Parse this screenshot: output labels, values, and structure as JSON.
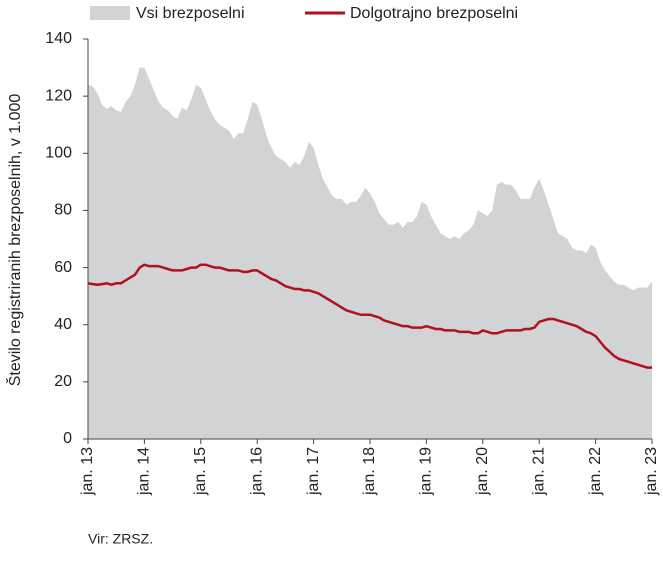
{
  "chart_data": {
    "type": "area_line",
    "y_label": "Število registriranih brezposelnih, v 1.000",
    "source": "Vir: ZRSZ.",
    "categories": [
      "jan. 13",
      null,
      null,
      null,
      null,
      null,
      null,
      null,
      null,
      null,
      null,
      null,
      "jan. 14",
      null,
      null,
      null,
      null,
      null,
      null,
      null,
      null,
      null,
      null,
      null,
      "jan. 15",
      null,
      null,
      null,
      null,
      null,
      null,
      null,
      null,
      null,
      null,
      null,
      "jan. 16",
      null,
      null,
      null,
      null,
      null,
      null,
      null,
      null,
      null,
      null,
      null,
      "jan. 17",
      null,
      null,
      null,
      null,
      null,
      null,
      null,
      null,
      null,
      null,
      null,
      "jan. 18",
      null,
      null,
      null,
      null,
      null,
      null,
      null,
      null,
      null,
      null,
      null,
      "jan. 19",
      null,
      null,
      null,
      null,
      null,
      null,
      null,
      null,
      null,
      null,
      null,
      "jan. 20",
      null,
      null,
      null,
      null,
      null,
      null,
      null,
      null,
      null,
      null,
      null,
      "jan. 21",
      null,
      null,
      null,
      null,
      null,
      null,
      null,
      null,
      null,
      null,
      null,
      "jan. 22",
      null,
      null,
      null,
      null,
      null,
      null,
      null,
      null,
      null,
      null,
      null,
      "jan. 23"
    ],
    "series": [
      {
        "name": "Vsi brezposelni",
        "color": "#d1d3d4",
        "kind": "area",
        "values": [
          124,
          123.5,
          121,
          117,
          115.5,
          116.5,
          115,
          114.5,
          118,
          120,
          124,
          130,
          130,
          126,
          122,
          118,
          116,
          115,
          113,
          112,
          116,
          115,
          119,
          124,
          123,
          119,
          115,
          112,
          110,
          109,
          108,
          105,
          107,
          107,
          112,
          118,
          117,
          112,
          106,
          102,
          99,
          98,
          97,
          95,
          97,
          96,
          99,
          104,
          102,
          96,
          91,
          88,
          85,
          84,
          84,
          82,
          83,
          83,
          85,
          88,
          86,
          83,
          79,
          77,
          75,
          75,
          76,
          74,
          76,
          76,
          78,
          83,
          82,
          78,
          75,
          72,
          71,
          70,
          71,
          70,
          72,
          73,
          75,
          80,
          79,
          78,
          80,
          89,
          90,
          89,
          89,
          87,
          84,
          84,
          84,
          88,
          91,
          87,
          82,
          77,
          72,
          71,
          70,
          67,
          66,
          66,
          65,
          68,
          67,
          62,
          59,
          57,
          55,
          54,
          54,
          53,
          52,
          53,
          53,
          53,
          55
        ]
      },
      {
        "name": "Dolgotrajno brezposelni",
        "color": "#b0121b",
        "kind": "line",
        "values": [
          54.5,
          54.2,
          54,
          54.2,
          54.5,
          54,
          54.5,
          54.5,
          55.5,
          56.5,
          57.5,
          60,
          61,
          60.5,
          60.5,
          60.5,
          60,
          59.5,
          59,
          59,
          59,
          59.5,
          60,
          60,
          61,
          61,
          60.5,
          60,
          60,
          59.5,
          59,
          59,
          59,
          58.5,
          58.5,
          59,
          59,
          58,
          57,
          56,
          55.5,
          54.5,
          53.5,
          53,
          52.5,
          52.5,
          52,
          52,
          51.5,
          51,
          50,
          49,
          48,
          47,
          46,
          45,
          44.5,
          44,
          43.5,
          43.5,
          43.5,
          43,
          42.5,
          41.5,
          41,
          40.5,
          40,
          39.5,
          39.5,
          39,
          39,
          39,
          39.5,
          39,
          38.5,
          38.5,
          38,
          38,
          38,
          37.5,
          37.5,
          37.5,
          37,
          37,
          38,
          37.5,
          37,
          37,
          37.5,
          38,
          38,
          38,
          38,
          38.5,
          38.5,
          39,
          41,
          41.5,
          42,
          42,
          41.5,
          41,
          40.5,
          40,
          39.5,
          38.5,
          37.5,
          37,
          36,
          34,
          32,
          30.5,
          29,
          28,
          27.5,
          27,
          26.5,
          26,
          25.5,
          25,
          25
        ]
      }
    ],
    "ylim": [
      0,
      140
    ],
    "yticks": [
      0,
      20,
      40,
      60,
      80,
      100,
      120,
      140
    ],
    "grid": false
  }
}
